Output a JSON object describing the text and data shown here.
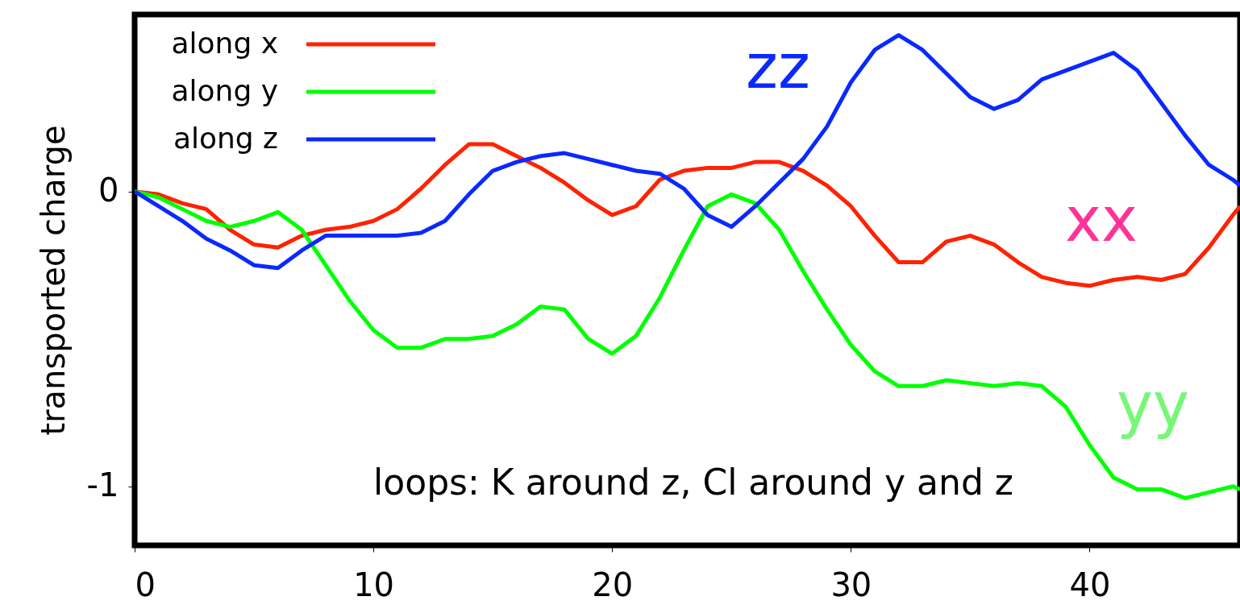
{
  "chart_data": {
    "type": "line",
    "ylabel": "transported charge",
    "x": [
      0,
      1,
      2,
      3,
      4,
      5,
      6,
      7,
      8,
      9,
      10,
      11,
      12,
      13,
      14,
      15,
      16,
      17,
      18,
      19,
      20,
      21,
      22,
      23,
      24,
      25,
      26,
      27,
      28,
      29,
      30,
      31,
      32,
      33,
      34,
      35,
      36,
      37,
      38,
      39,
      40,
      41,
      42,
      43,
      44,
      45,
      46,
      46.3
    ],
    "series": [
      {
        "name": "along x",
        "color": "#ff2200",
        "values": [
          0,
          -0.01,
          -0.04,
          -0.06,
          -0.13,
          -0.18,
          -0.19,
          -0.15,
          -0.13,
          -0.12,
          -0.1,
          -0.06,
          0.01,
          0.09,
          0.16,
          0.16,
          0.12,
          0.08,
          0.03,
          -0.03,
          -0.08,
          -0.05,
          0.04,
          0.07,
          0.08,
          0.08,
          0.1,
          0.1,
          0.07,
          0.02,
          -0.05,
          -0.15,
          -0.24,
          -0.24,
          -0.17,
          -0.15,
          -0.18,
          -0.24,
          -0.29,
          -0.31,
          -0.32,
          -0.3,
          -0.29,
          -0.3,
          -0.28,
          -0.19,
          -0.08,
          -0.05
        ]
      },
      {
        "name": "along y",
        "color": "#00ff00",
        "values": [
          0,
          -0.02,
          -0.06,
          -0.1,
          -0.12,
          -0.1,
          -0.07,
          -0.13,
          -0.25,
          -0.37,
          -0.47,
          -0.53,
          -0.53,
          -0.5,
          -0.5,
          -0.49,
          -0.45,
          -0.39,
          -0.4,
          -0.5,
          -0.55,
          -0.49,
          -0.36,
          -0.2,
          -0.05,
          -0.01,
          -0.04,
          -0.13,
          -0.27,
          -0.4,
          -0.52,
          -0.61,
          -0.66,
          -0.66,
          -0.64,
          -0.65,
          -0.66,
          -0.65,
          -0.66,
          -0.73,
          -0.86,
          -0.97,
          -1.01,
          -1.01,
          -1.04,
          -1.02,
          -1.0,
          -1.01
        ]
      },
      {
        "name": "along z",
        "color": "#0a28ff",
        "values": [
          0,
          -0.05,
          -0.1,
          -0.16,
          -0.2,
          -0.25,
          -0.26,
          -0.2,
          -0.15,
          -0.15,
          -0.15,
          -0.15,
          -0.14,
          -0.1,
          -0.01,
          0.07,
          0.1,
          0.12,
          0.13,
          0.11,
          0.09,
          0.07,
          0.06,
          0.01,
          -0.08,
          -0.12,
          -0.05,
          0.03,
          0.11,
          0.22,
          0.37,
          0.48,
          0.53,
          0.48,
          0.4,
          0.32,
          0.28,
          0.31,
          0.38,
          0.41,
          0.44,
          0.47,
          0.41,
          0.3,
          0.19,
          0.09,
          0.04,
          0.02
        ]
      }
    ],
    "xlim": [
      0,
      46.3
    ],
    "xticks": [
      0,
      10,
      20,
      30,
      40
    ],
    "ylim": [
      -1.2,
      0.6
    ],
    "yticks": [
      -1,
      0
    ],
    "annotations": [
      "zz",
      "xx",
      "yy",
      "loops: K around z, Cl around y and z"
    ],
    "legend": "top left",
    "grid": false,
    "line_style": "solid",
    "marker": "none"
  }
}
